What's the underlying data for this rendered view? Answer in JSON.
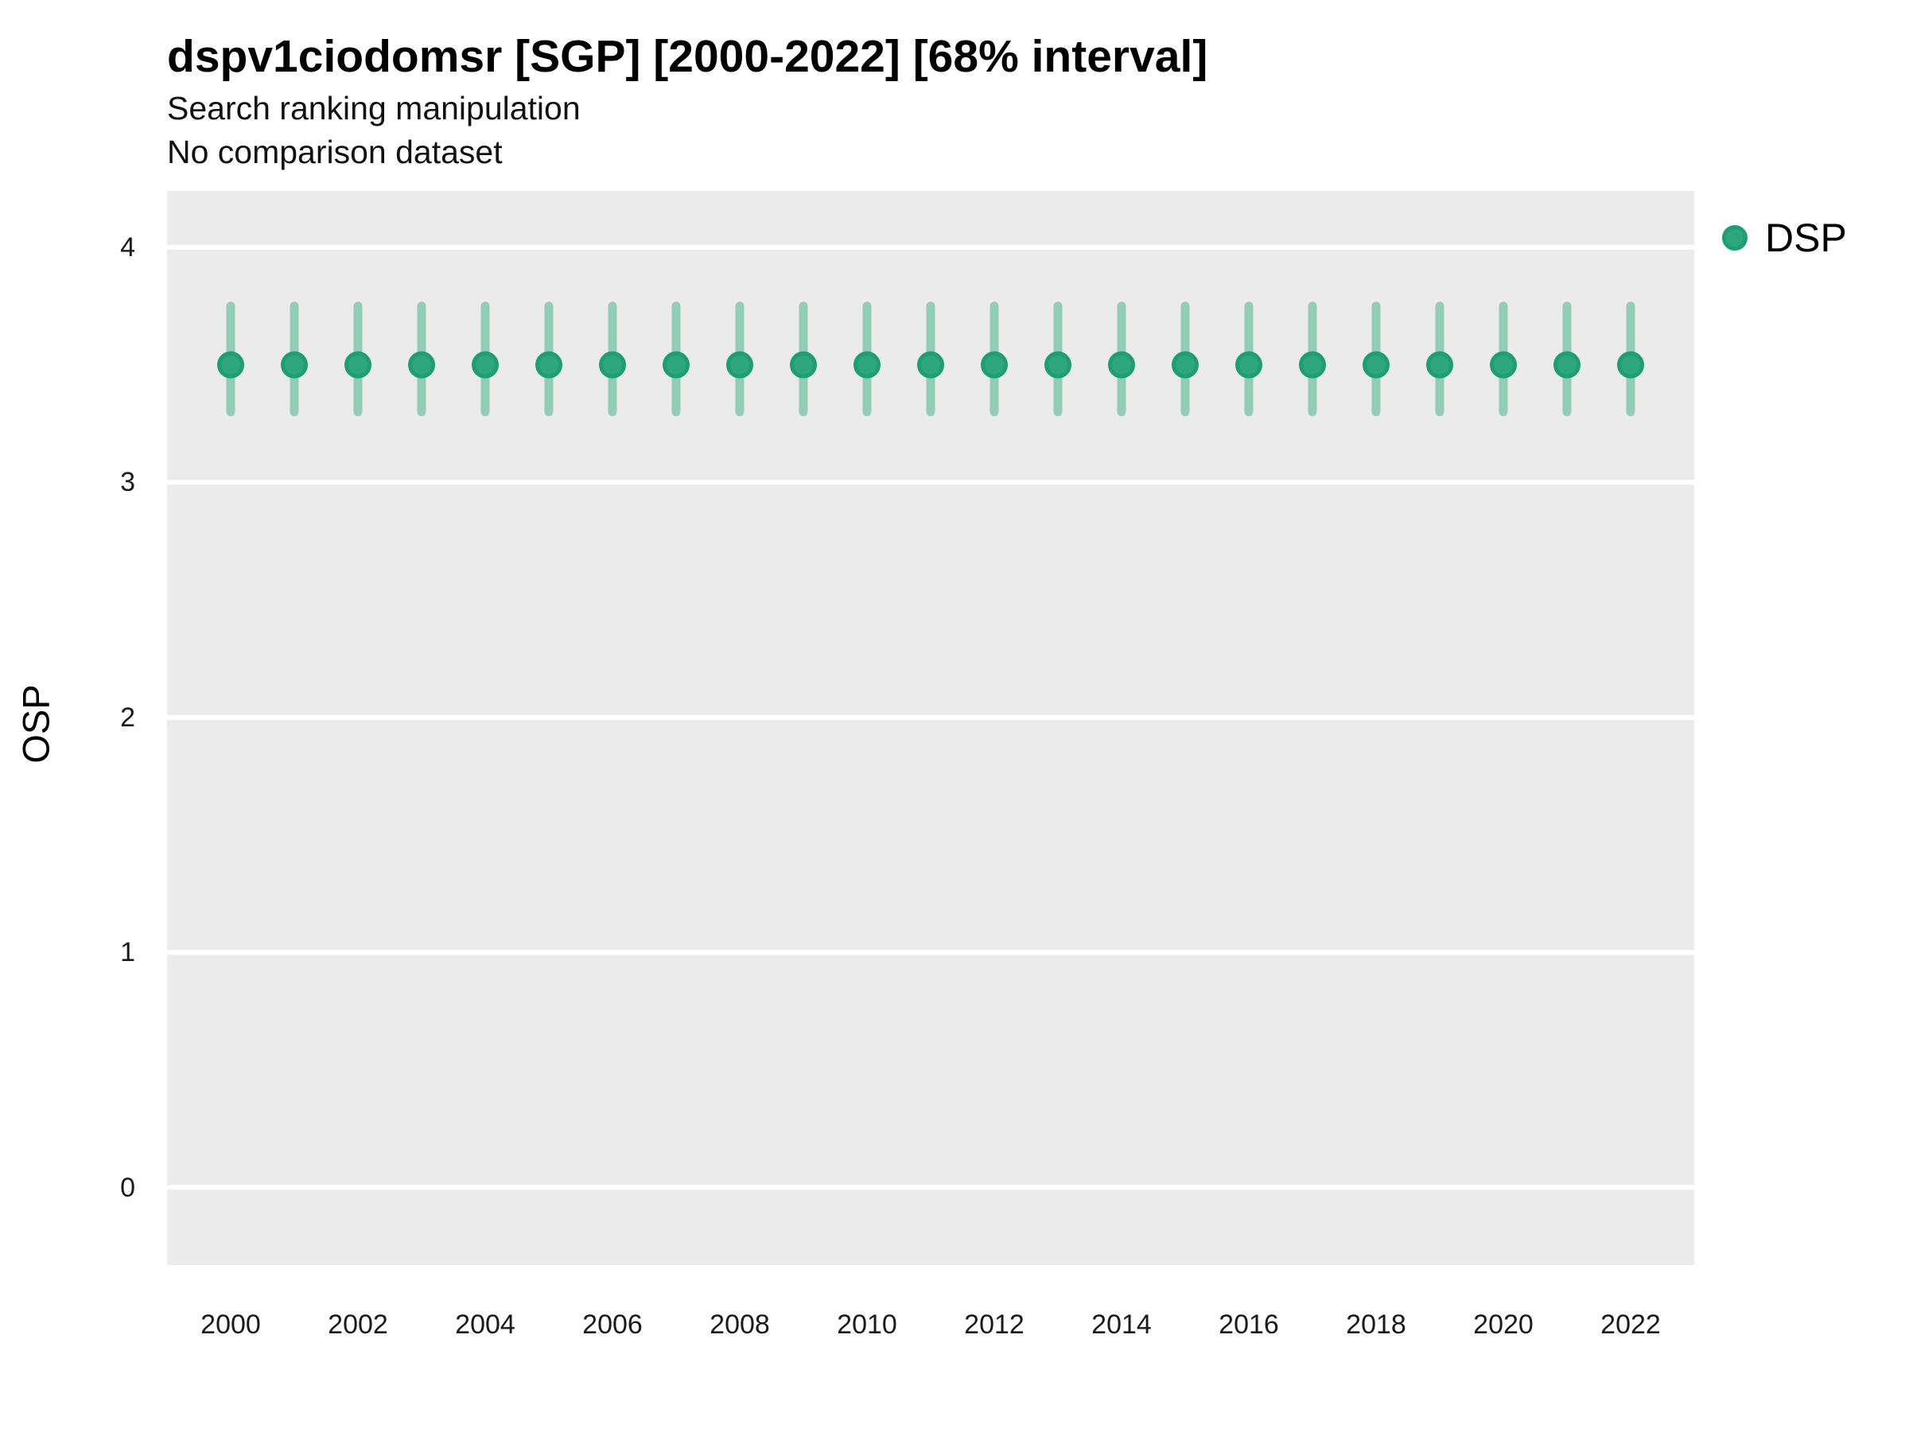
{
  "header": {
    "title": "dspv1ciodomsr [SGP] [2000-2022] [68% interval]",
    "subtitle": "Search ranking manipulation",
    "note": "No comparison dataset"
  },
  "legend": {
    "position": "right",
    "items": [
      {
        "label": "DSP",
        "fill": "#2EA67F",
        "stroke": "#1E9E72"
      }
    ]
  },
  "axes": {
    "y_label": "OSP",
    "y_ticks": [
      0,
      1,
      2,
      3,
      4
    ],
    "x_tick_labels": [
      "2000",
      "2002",
      "2004",
      "2006",
      "2008",
      "2010",
      "2012",
      "2014",
      "2016",
      "2018",
      "2020",
      "2022"
    ]
  },
  "chart_data": {
    "type": "scatter",
    "title": "dspv1ciodomsr [SGP] [2000-2022] [68% interval]",
    "subtitle": "Search ranking manipulation",
    "note": "No comparison dataset",
    "xlabel": "",
    "ylabel": "OSP",
    "interval": "68%",
    "ylim": [
      -0.33,
      4.24
    ],
    "grid": "horizontal-major-white",
    "legend_position": "right",
    "series": [
      {
        "name": "DSP",
        "x": [
          2000,
          2001,
          2002,
          2003,
          2004,
          2005,
          2006,
          2007,
          2008,
          2009,
          2010,
          2011,
          2012,
          2013,
          2014,
          2015,
          2016,
          2017,
          2018,
          2019,
          2020,
          2021,
          2022
        ],
        "y": [
          3.5,
          3.5,
          3.5,
          3.5,
          3.5,
          3.5,
          3.5,
          3.5,
          3.5,
          3.5,
          3.5,
          3.5,
          3.5,
          3.5,
          3.5,
          3.5,
          3.5,
          3.5,
          3.5,
          3.5,
          3.5,
          3.5,
          3.5
        ],
        "y_lo": [
          3.3,
          3.3,
          3.3,
          3.3,
          3.3,
          3.3,
          3.3,
          3.3,
          3.3,
          3.3,
          3.3,
          3.3,
          3.3,
          3.3,
          3.3,
          3.3,
          3.3,
          3.3,
          3.3,
          3.3,
          3.3,
          3.3,
          3.3
        ],
        "y_hi": [
          3.75,
          3.75,
          3.75,
          3.75,
          3.75,
          3.75,
          3.75,
          3.75,
          3.75,
          3.75,
          3.75,
          3.75,
          3.75,
          3.75,
          3.75,
          3.75,
          3.75,
          3.75,
          3.75,
          3.75,
          3.75,
          3.75,
          3.75
        ]
      }
    ],
    "colors": {
      "point_fill": "#2EA67F",
      "point_stroke": "#1E9E72",
      "interval_bar": "#93CDB5",
      "panel_bg": "#EBEBEB",
      "gridline": "#FFFFFF"
    }
  }
}
